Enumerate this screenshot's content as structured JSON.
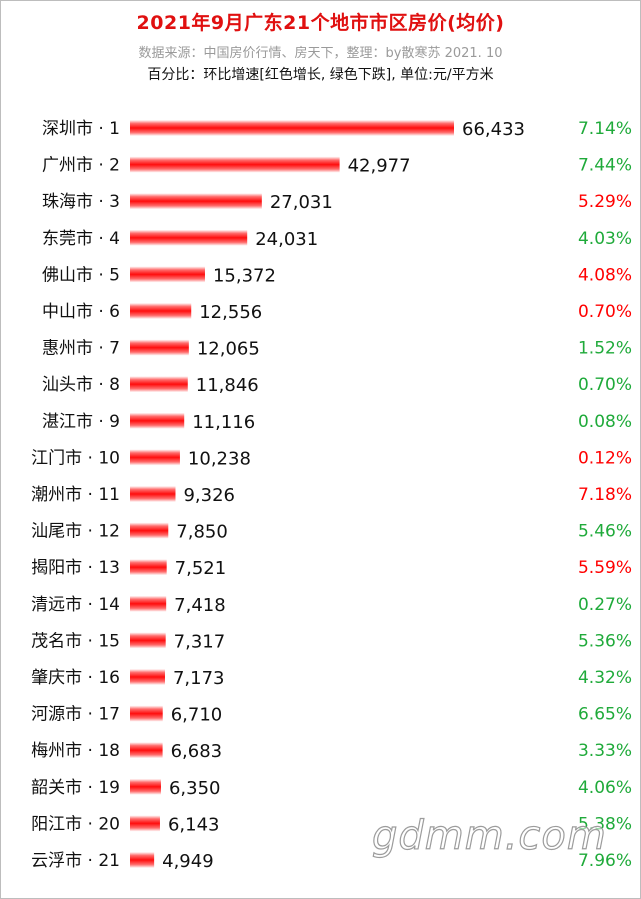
{
  "header": {
    "title": "2021年9月广东21个地市市区房价(均价)",
    "source": "数据来源：中国房价行情、房天下，整理：by散寒苏  2021. 10",
    "note": "百分比：环比增速[红色增长, 绿色下跌], 单位:元/平方米"
  },
  "watermark": "gdmm.com",
  "colors": {
    "bar": "#ff1a1a",
    "increase": "#ff0000",
    "decrease": "#1faa3a"
  },
  "chart_data": {
    "type": "bar",
    "orientation": "horizontal",
    "title": "2021年9月广东21个地市市区房价(均价)",
    "categories": [
      "深圳市 · 1",
      "广州市 · 2",
      "珠海市 · 3",
      "东莞市 · 4",
      "佛山市 · 5",
      "中山市 · 6",
      "惠州市 · 7",
      "汕头市 · 8",
      "湛江市 · 9",
      "江门市 · 10",
      "潮州市 · 11",
      "汕尾市 · 12",
      "揭阳市 · 13",
      "清远市 · 14",
      "茂名市 · 15",
      "肇庆市 · 16",
      "河源市 · 17",
      "梅州市 · 18",
      "韶关市 · 19",
      "阳江市 · 20",
      "云浮市 · 21"
    ],
    "values": [
      66433,
      42977,
      27031,
      24031,
      15372,
      12556,
      12065,
      11846,
      11116,
      10238,
      9326,
      7850,
      7521,
      7418,
      7317,
      7173,
      6710,
      6683,
      6350,
      6143,
      4949
    ],
    "value_labels": [
      "66,433",
      "42,977",
      "27,031",
      "24,031",
      "15,372",
      "12,556",
      "12,065",
      "11,846",
      "11,116",
      "10,238",
      "9,326",
      "7,850",
      "7,521",
      "7,418",
      "7,317",
      "7,173",
      "6,710",
      "6,683",
      "6,350",
      "6,143",
      "4,949"
    ],
    "mom_change": [
      "7.14%",
      "7.44%",
      "5.29%",
      "4.03%",
      "4.08%",
      "0.70%",
      "1.52%",
      "0.70%",
      "0.08%",
      "0.12%",
      "7.18%",
      "5.46%",
      "5.59%",
      "0.27%",
      "5.36%",
      "4.32%",
      "6.65%",
      "3.33%",
      "4.06%",
      "5.38%",
      "7.96%"
    ],
    "mom_direction": [
      "down",
      "down",
      "up",
      "down",
      "up",
      "up",
      "down",
      "down",
      "down",
      "up",
      "up",
      "down",
      "up",
      "down",
      "down",
      "down",
      "down",
      "down",
      "down",
      "down",
      "down"
    ],
    "grid": false
  }
}
